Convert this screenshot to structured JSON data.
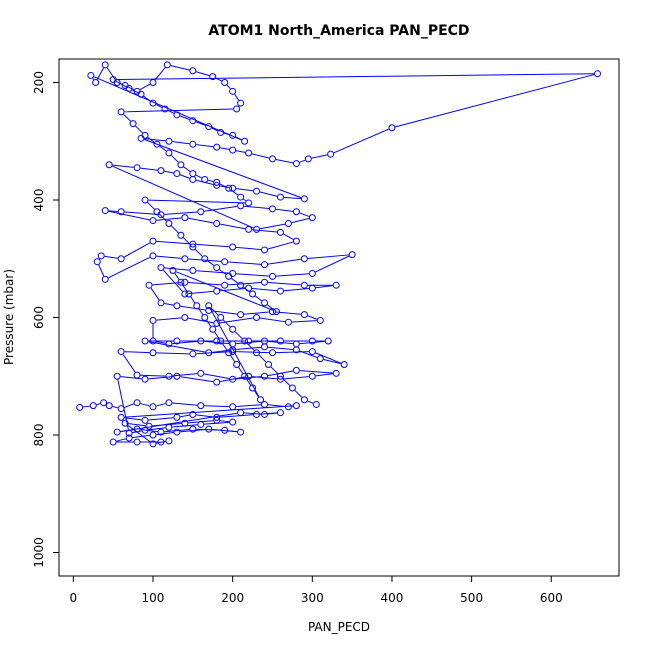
{
  "chart_data": {
    "type": "scatter",
    "title": "ATOM1 North_America PAN_PECD",
    "xlabel": "PAN_PECD",
    "ylabel": "Pressure (mbar)",
    "xlim": [
      -18,
      685
    ],
    "ylim": [
      1040,
      160
    ],
    "y_reversed": true,
    "x_ticks": [
      0,
      100,
      200,
      300,
      400,
      500,
      600
    ],
    "y_ticks": [
      200,
      400,
      600,
      800,
      1000
    ],
    "grid": false,
    "legend": "none",
    "series_color": "#0000ff",
    "series": [
      {
        "style": "line+markers",
        "points": [
          [
            8,
            753
          ],
          [
            25,
            750
          ],
          [
            38,
            745
          ],
          [
            45,
            750
          ],
          [
            60,
            755
          ],
          [
            80,
            745
          ],
          [
            100,
            752
          ],
          [
            120,
            745
          ],
          [
            160,
            750
          ],
          [
            200,
            752
          ],
          [
            240,
            748
          ],
          [
            270,
            752
          ],
          [
            280,
            750
          ],
          [
            60,
            770
          ],
          [
            90,
            775
          ],
          [
            130,
            770
          ],
          [
            150,
            765
          ],
          [
            180,
            770
          ],
          [
            230,
            765
          ],
          [
            260,
            762
          ],
          [
            240,
            765
          ],
          [
            210,
            762
          ],
          [
            55,
            795
          ],
          [
            80,
            790
          ],
          [
            110,
            795
          ],
          [
            150,
            790
          ],
          [
            190,
            792
          ],
          [
            210,
            795
          ],
          [
            170,
            790
          ],
          [
            130,
            795
          ],
          [
            100,
            800
          ],
          [
            70,
            805
          ],
          [
            50,
            812
          ],
          [
            80,
            812
          ],
          [
            110,
            812
          ],
          [
            120,
            810
          ],
          [
            100,
            815
          ],
          [
            65,
            780
          ],
          [
            95,
            785
          ],
          [
            140,
            780
          ],
          [
            180,
            775
          ],
          [
            200,
            778
          ],
          [
            160,
            782
          ],
          [
            120,
            787
          ],
          [
            90,
            792
          ],
          [
            70,
            797
          ],
          [
            55,
            700
          ],
          [
            90,
            705
          ],
          [
            130,
            700
          ],
          [
            180,
            710
          ],
          [
            220,
            700
          ],
          [
            260,
            705
          ],
          [
            300,
            700
          ],
          [
            330,
            695
          ],
          [
            280,
            690
          ],
          [
            240,
            700
          ],
          [
            200,
            705
          ],
          [
            160,
            695
          ],
          [
            120,
            700
          ],
          [
            80,
            698
          ],
          [
            60,
            658
          ],
          [
            100,
            660
          ],
          [
            150,
            662
          ],
          [
            200,
            658
          ],
          [
            250,
            660
          ],
          [
            300,
            658
          ],
          [
            340,
            680
          ],
          [
            310,
            670
          ],
          [
            280,
            655
          ],
          [
            240,
            650
          ],
          [
            200,
            655
          ],
          [
            170,
            660
          ],
          [
            90,
            640
          ],
          [
            130,
            640
          ],
          [
            180,
            640
          ],
          [
            220,
            640
          ],
          [
            260,
            640
          ],
          [
            300,
            640
          ],
          [
            320,
            640
          ],
          [
            280,
            645
          ],
          [
            240,
            640
          ],
          [
            200,
            645
          ],
          [
            160,
            640
          ],
          [
            120,
            645
          ],
          [
            100,
            640
          ],
          [
            100,
            605
          ],
          [
            140,
            600
          ],
          [
            180,
            610
          ],
          [
            230,
            600
          ],
          [
            270,
            608
          ],
          [
            310,
            605
          ],
          [
            290,
            595
          ],
          [
            250,
            590
          ],
          [
            210,
            595
          ],
          [
            170,
            588
          ],
          [
            130,
            580
          ],
          [
            110,
            575
          ],
          [
            95,
            545
          ],
          [
            140,
            540
          ],
          [
            190,
            545
          ],
          [
            240,
            540
          ],
          [
            290,
            545
          ],
          [
            330,
            545
          ],
          [
            300,
            550
          ],
          [
            260,
            555
          ],
          [
            220,
            550
          ],
          [
            180,
            555
          ],
          [
            140,
            560
          ],
          [
            110,
            515
          ],
          [
            150,
            520
          ],
          [
            200,
            525
          ],
          [
            250,
            530
          ],
          [
            300,
            525
          ],
          [
            350,
            493
          ],
          [
            290,
            500
          ],
          [
            240,
            510
          ],
          [
            190,
            505
          ],
          [
            140,
            500
          ],
          [
            100,
            495
          ],
          [
            40,
            535
          ],
          [
            30,
            505
          ],
          [
            35,
            495
          ],
          [
            60,
            500
          ],
          [
            100,
            470
          ],
          [
            150,
            475
          ],
          [
            200,
            480
          ],
          [
            240,
            485
          ],
          [
            280,
            470
          ],
          [
            260,
            455
          ],
          [
            220,
            450
          ],
          [
            180,
            440
          ],
          [
            140,
            430
          ],
          [
            100,
            435
          ],
          [
            40,
            418
          ],
          [
            60,
            420
          ],
          [
            110,
            425
          ],
          [
            160,
            420
          ],
          [
            210,
            410
          ],
          [
            250,
            415
          ],
          [
            280,
            420
          ],
          [
            300,
            430
          ],
          [
            270,
            440
          ],
          [
            230,
            450
          ],
          [
            45,
            340
          ],
          [
            80,
            345
          ],
          [
            110,
            350
          ],
          [
            130,
            355
          ],
          [
            150,
            365
          ],
          [
            180,
            375
          ],
          [
            200,
            380
          ],
          [
            230,
            385
          ],
          [
            260,
            395
          ],
          [
            290,
            398
          ],
          [
            85,
            295
          ],
          [
            120,
            300
          ],
          [
            150,
            305
          ],
          [
            180,
            310
          ],
          [
            200,
            315
          ],
          [
            220,
            320
          ],
          [
            250,
            330
          ],
          [
            280,
            338
          ],
          [
            295,
            330
          ],
          [
            323,
            322
          ],
          [
            400,
            277
          ],
          [
            658,
            185
          ],
          [
            50,
            195
          ],
          [
            70,
            210
          ],
          [
            85,
            220
          ],
          [
            100,
            235
          ],
          [
            115,
            245
          ],
          [
            130,
            255
          ],
          [
            150,
            265
          ],
          [
            170,
            275
          ],
          [
            185,
            285
          ],
          [
            200,
            290
          ],
          [
            215,
            300
          ],
          [
            22,
            188
          ],
          [
            28,
            200
          ],
          [
            40,
            170
          ],
          [
            55,
            200
          ],
          [
            65,
            205
          ],
          [
            80,
            215
          ],
          [
            100,
            200
          ],
          [
            118,
            170
          ],
          [
            150,
            180
          ],
          [
            175,
            190
          ],
          [
            190,
            200
          ],
          [
            200,
            215
          ],
          [
            210,
            235
          ],
          [
            205,
            245
          ],
          [
            60,
            250
          ],
          [
            75,
            270
          ],
          [
            90,
            290
          ],
          [
            105,
            305
          ],
          [
            120,
            320
          ],
          [
            135,
            340
          ],
          [
            150,
            355
          ],
          [
            165,
            365
          ],
          [
            180,
            370
          ],
          [
            195,
            380
          ],
          [
            210,
            395
          ],
          [
            220,
            405
          ],
          [
            90,
            400
          ],
          [
            105,
            420
          ],
          [
            120,
            440
          ],
          [
            135,
            460
          ],
          [
            150,
            480
          ],
          [
            165,
            500
          ],
          [
            180,
            515
          ],
          [
            195,
            530
          ],
          [
            210,
            545
          ],
          [
            225,
            560
          ],
          [
            240,
            575
          ],
          [
            255,
            590
          ],
          [
            125,
            520
          ],
          [
            135,
            540
          ],
          [
            145,
            560
          ],
          [
            155,
            580
          ],
          [
            165,
            600
          ],
          [
            175,
            620
          ],
          [
            185,
            640
          ],
          [
            195,
            660
          ],
          [
            205,
            680
          ],
          [
            215,
            700
          ],
          [
            225,
            720
          ],
          [
            235,
            740
          ],
          [
            170,
            580
          ],
          [
            185,
            600
          ],
          [
            200,
            620
          ],
          [
            215,
            640
          ],
          [
            230,
            660
          ],
          [
            245,
            680
          ],
          [
            260,
            700
          ],
          [
            275,
            720
          ],
          [
            290,
            740
          ],
          [
            305,
            748
          ]
        ]
      }
    ]
  }
}
